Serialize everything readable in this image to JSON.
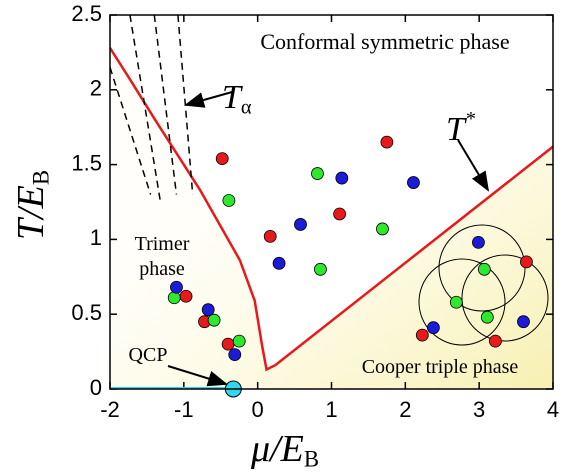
{
  "chart_data": {
    "type": "scatter",
    "x_label": {
      "text": "μ/E",
      "sub": "B"
    },
    "y_label": {
      "text": "T/E",
      "sub": "B"
    },
    "xlim": [
      -2,
      4
    ],
    "ylim": [
      0,
      2.5
    ],
    "xticks": [
      -2,
      -1,
      0,
      1,
      2,
      3,
      4
    ],
    "yticks": [
      0,
      0.5,
      1,
      1.5,
      2,
      2.5
    ],
    "series": [
      {
        "color": "#e8191b",
        "x": [
          -0.48,
          1.75,
          0.17,
          1.11,
          -0.97,
          -0.72,
          -0.4,
          2.23,
          3.64,
          3.22
        ],
        "y": [
          1.54,
          1.65,
          1.02,
          1.17,
          0.62,
          0.45,
          0.3,
          0.36,
          0.85,
          0.32
        ]
      },
      {
        "color": "#2ee82e",
        "x": [
          -0.39,
          0.81,
          1.69,
          0.85,
          -1.13,
          -0.59,
          -0.25,
          3.07,
          2.69,
          3.11
        ],
        "y": [
          1.26,
          1.44,
          1.07,
          0.8,
          0.61,
          0.46,
          0.32,
          0.8,
          0.58,
          0.48
        ]
      },
      {
        "color": "#1b1bd8",
        "x": [
          1.14,
          2.11,
          0.58,
          0.29,
          -1.1,
          -0.67,
          -0.31,
          2.99,
          2.38,
          3.6
        ],
        "y": [
          1.41,
          1.38,
          1.1,
          0.84,
          0.68,
          0.53,
          0.23,
          0.98,
          0.41,
          0.45
        ]
      }
    ],
    "lines": [
      {
        "color": "#e8191b",
        "x": [
          -2,
          -1.73,
          -1.39,
          -0.78,
          -0.24,
          -0.04,
          0.06,
          0.12,
          0.24,
          4
        ],
        "y": [
          2.28,
          2.07,
          1.8,
          1.33,
          0.86,
          0.59,
          0.29,
          0.13,
          0.16,
          1.62
        ]
      },
      {
        "color": "#000000",
        "dashed": true,
        "x": [
          -2,
          -1.45
        ],
        "y": [
          2.15,
          1.3
        ]
      },
      {
        "color": "#000000",
        "dashed": true,
        "x": [
          -1.73,
          -1.32
        ],
        "y": [
          2.5,
          1.26
        ]
      },
      {
        "color": "#000000",
        "dashed": true,
        "x": [
          -1.4,
          -1.1
        ],
        "y": [
          2.5,
          1.3
        ]
      },
      {
        "color": "#000000",
        "dashed": true,
        "x": [
          -1.08,
          -0.88
        ],
        "y": [
          2.5,
          1.3
        ]
      },
      {
        "color": "#33d6ee",
        "x": [
          -2,
          -0.33
        ],
        "y": [
          0,
          0
        ]
      }
    ],
    "points": [
      {
        "color": "#33d6ee",
        "x": -0.33,
        "y": 0
      }
    ],
    "annotations": [
      {
        "text": "Conformal symmetric phase"
      },
      {
        "text": "T",
        "sub": "α"
      },
      {
        "text": "T",
        "sup": "*"
      },
      {
        "text": "Trimer"
      },
      {
        "text": "phase"
      },
      {
        "text": "QCP"
      },
      {
        "text": "Cooper triple phase"
      }
    ]
  }
}
